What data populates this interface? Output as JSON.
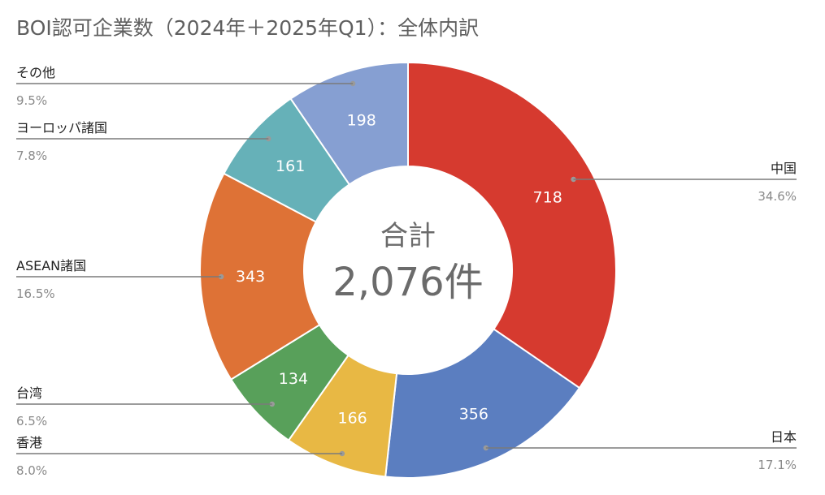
{
  "chart_data": {
    "type": "pie",
    "title": "BOI認可企業数（2024年＋2025年Q1）：全体内訳",
    "center_label": "合計",
    "center_value": "2,076件",
    "slices": [
      {
        "name": "中国",
        "value": 718,
        "value_label": "718",
        "percent_label": "34.6%",
        "color": "#d63a2f"
      },
      {
        "name": "日本",
        "value": 356,
        "value_label": "356",
        "percent_label": "17.1%",
        "color": "#5b7ec0"
      },
      {
        "name": "香港",
        "value": 166,
        "value_label": "166",
        "percent_label": "8.0%",
        "color": "#e8b844"
      },
      {
        "name": "台湾",
        "value": 134,
        "value_label": "134",
        "percent_label": "6.5%",
        "color": "#58a05a"
      },
      {
        "name": "ASEAN諸国",
        "value": 343,
        "value_label": "343",
        "percent_label": "16.5%",
        "color": "#de7236"
      },
      {
        "name": "ヨーロッパ諸国",
        "value": 161,
        "value_label": "161",
        "percent_label": "7.8%",
        "color": "#66b1b8"
      },
      {
        "name": "その他",
        "value": 198,
        "value_label": "198",
        "percent_label": "9.5%",
        "color": "#869fd2"
      }
    ],
    "legend": "none",
    "grid": false
  }
}
